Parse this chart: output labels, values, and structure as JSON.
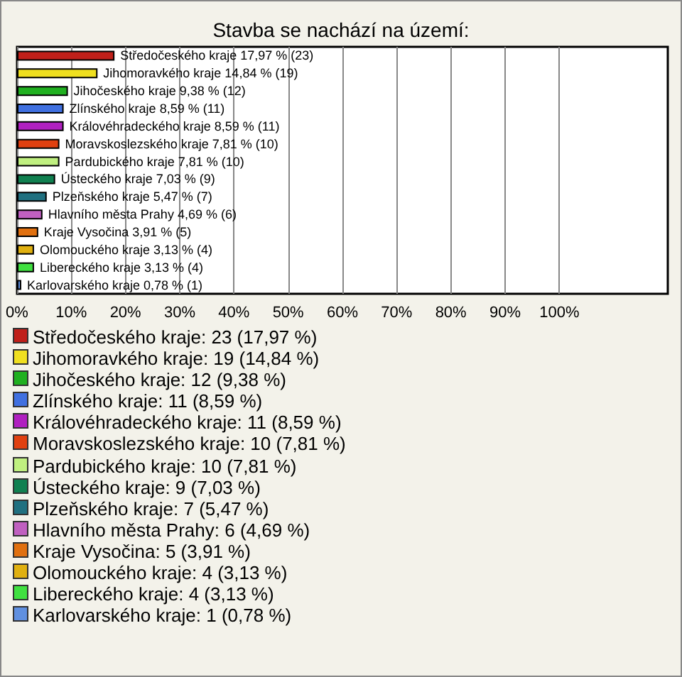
{
  "chart_data": {
    "type": "bar",
    "orientation": "horizontal",
    "title": "Stavba se nachází na území:",
    "categories": [
      null,
      null,
      null,
      null,
      null,
      null,
      null,
      null,
      null,
      null,
      null,
      null,
      null,
      null
    ],
    "values": [
      17.97,
      14.84,
      9.38,
      8.59,
      8.59,
      7.81,
      7.81,
      7.03,
      5.47,
      4.69,
      3.91,
      3.13,
      3.13,
      0.78
    ],
    "colors": [
      "#c0201a",
      "#f0e020",
      "#20b020",
      "#4070e0",
      "#b020c0",
      "#e04010",
      "#c0f080",
      "#108050",
      "#207080",
      "#c060c0",
      "#e07010",
      "#e0b010",
      "#40e040",
      "#6090e0"
    ],
    "value_labels": [
      "Středočeského kraje 17,97 % (23)",
      "Jihomoravkého kraje 14,84 % (19)",
      "Jihočeského kraje 9,38 % (12)",
      "Zlínského kraje 8,59 % (11)",
      "Královéhradeckého kraje 8,59 % (11)",
      "Moravskoslezského kraje 7,81 % (10)",
      "Pardubického kraje 7,81 % (10)",
      "Ústeckého kraje 7,03 % (9)",
      "Plzeňského kraje 5,47 % (7)",
      "Hlavního města Prahy 4,69 % (6)",
      "Kraje Vysočina 3,91 % (5)",
      "Olomouckého kraje 3,13 % (4)",
      "Libereckého kraje 3,13 % (4)",
      "Karlovarského kraje 0,78 % (1)"
    ],
    "xlim": [
      0,
      120
    ],
    "xticks": [
      {
        "value": 0,
        "label": "0%"
      },
      {
        "value": 10,
        "label": "10%"
      },
      {
        "value": 20,
        "label": "20%"
      },
      {
        "value": 30,
        "label": "30%"
      },
      {
        "value": 40,
        "label": "40%"
      },
      {
        "value": 50,
        "label": "50%"
      },
      {
        "value": 60,
        "label": "60%"
      },
      {
        "value": 70,
        "label": "70%"
      },
      {
        "value": 80,
        "label": "80%"
      },
      {
        "value": 90,
        "label": "90%"
      },
      {
        "value": 100,
        "label": "100%"
      }
    ],
    "grid": "x",
    "tick_labels": "x",
    "annotations": [
      "Středočeského kraje: 23 (17,97 %)",
      "Jihomoravkého kraje: 19 (14,84 %)",
      "Jihočeského kraje: 12 (9,38 %)",
      "Zlínského kraje: 11 (8,59 %)",
      "Královéhradeckého kraje: 11 (8,59 %)",
      "Moravskoslezského kraje: 10 (7,81 %)",
      "Pardubického kraje: 10 (7,81 %)",
      "Ústeckého kraje: 9 (7,03 %)",
      "Plzeňského kraje: 7 (5,47 %)",
      "Hlavního města Prahy: 6 (4,69 %)",
      "Kraje Vysočina: 5 (3,91 %)",
      "Olomouckého kraje: 4 (3,13 %)",
      "Libereckého kraje: 4 (3,13 %)",
      "Karlovarského kraje: 1 (0,78 %)"
    ]
  }
}
